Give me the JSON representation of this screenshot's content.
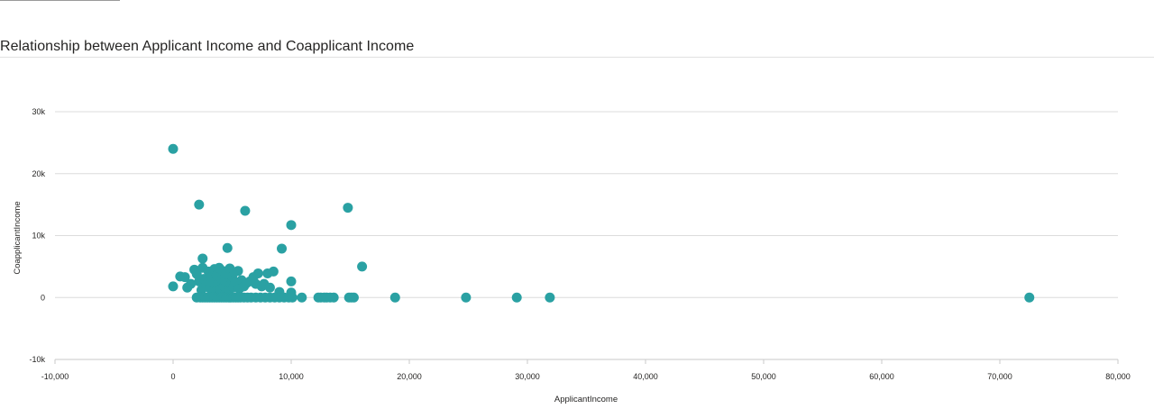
{
  "page": {
    "title": "Relationship between Applicant Income and Coapplicant Income"
  },
  "colors": {
    "marker": "#2aa1a3",
    "gridline": "#dcdcdc",
    "axis_line": "#c8c8c8",
    "text": "#252423"
  },
  "chart_data": {
    "type": "scatter",
    "title": "Relationship between Applicant Income and Coapplicant Income",
    "xlabel": "ApplicantIncome",
    "ylabel": "CoapplicantIncome",
    "xlim": [
      -10000,
      80000
    ],
    "ylim": [
      -10000,
      30000
    ],
    "x_ticks": [
      -10000,
      0,
      10000,
      20000,
      30000,
      40000,
      50000,
      60000,
      70000,
      80000
    ],
    "x_tick_labels": [
      "-10,000",
      "0",
      "10,000",
      "20,000",
      "30,000",
      "40,000",
      "50,000",
      "60,000",
      "70,000",
      "80,000"
    ],
    "y_ticks": [
      -10000,
      0,
      10000,
      20000,
      30000
    ],
    "y_tick_labels": [
      "-10k",
      "0",
      "10k",
      "20k",
      "30k"
    ],
    "grid": true,
    "legend": "none",
    "points": [
      [
        0,
        24000
      ],
      [
        2200,
        15000
      ],
      [
        6100,
        14000
      ],
      [
        14800,
        14500
      ],
      [
        10000,
        11700
      ],
      [
        4600,
        8000
      ],
      [
        9200,
        7900
      ],
      [
        16000,
        5000
      ],
      [
        2500,
        6300
      ],
      [
        0,
        1800
      ],
      [
        600,
        3400
      ],
      [
        1000,
        3300
      ],
      [
        1200,
        1600
      ],
      [
        1500,
        2200
      ],
      [
        1800,
        4500
      ],
      [
        2000,
        3800
      ],
      [
        2200,
        2600
      ],
      [
        2400,
        1200
      ],
      [
        2500,
        4800
      ],
      [
        2600,
        3000
      ],
      [
        2800,
        2000
      ],
      [
        3000,
        4200
      ],
      [
        3100,
        1500
      ],
      [
        3200,
        3300
      ],
      [
        3400,
        2400
      ],
      [
        3500,
        4600
      ],
      [
        3600,
        1000
      ],
      [
        3700,
        3600
      ],
      [
        3800,
        2200
      ],
      [
        3900,
        4800
      ],
      [
        4000,
        1300
      ],
      [
        4100,
        3000
      ],
      [
        4200,
        4300
      ],
      [
        4300,
        1800
      ],
      [
        4400,
        2700
      ],
      [
        4500,
        3800
      ],
      [
        4700,
        1100
      ],
      [
        4800,
        4700
      ],
      [
        4900,
        2200
      ],
      [
        5000,
        3400
      ],
      [
        5100,
        1600
      ],
      [
        5200,
        4100
      ],
      [
        5300,
        2500
      ],
      [
        5500,
        4300
      ],
      [
        5600,
        1400
      ],
      [
        5800,
        2800
      ],
      [
        6000,
        1800
      ],
      [
        6200,
        2300
      ],
      [
        6500,
        2600
      ],
      [
        6800,
        3300
      ],
      [
        7000,
        2200
      ],
      [
        7200,
        3900
      ],
      [
        7500,
        1800
      ],
      [
        7700,
        2200
      ],
      [
        8000,
        3900
      ],
      [
        8200,
        1600
      ],
      [
        8500,
        4200
      ],
      [
        9000,
        900
      ],
      [
        10000,
        2600
      ],
      [
        10000,
        800
      ],
      [
        2000,
        0
      ],
      [
        2300,
        0
      ],
      [
        2500,
        0
      ],
      [
        2700,
        0
      ],
      [
        2900,
        0
      ],
      [
        3100,
        0
      ],
      [
        3300,
        0
      ],
      [
        3500,
        0
      ],
      [
        3700,
        0
      ],
      [
        3900,
        0
      ],
      [
        4100,
        0
      ],
      [
        4300,
        0
      ],
      [
        4500,
        0
      ],
      [
        4700,
        0
      ],
      [
        4900,
        0
      ],
      [
        5100,
        0
      ],
      [
        5300,
        0
      ],
      [
        5500,
        0
      ],
      [
        5700,
        0
      ],
      [
        6000,
        0
      ],
      [
        6300,
        0
      ],
      [
        6600,
        0
      ],
      [
        7000,
        0
      ],
      [
        7400,
        0
      ],
      [
        7800,
        0
      ],
      [
        8200,
        0
      ],
      [
        8600,
        0
      ],
      [
        9000,
        0
      ],
      [
        9400,
        0
      ],
      [
        9800,
        0
      ],
      [
        10100,
        0
      ],
      [
        10900,
        0
      ],
      [
        12300,
        0
      ],
      [
        12500,
        0
      ],
      [
        12800,
        0
      ],
      [
        13000,
        0
      ],
      [
        13300,
        0
      ],
      [
        13600,
        0
      ],
      [
        14900,
        0
      ],
      [
        15100,
        0
      ],
      [
        15300,
        0
      ],
      [
        18800,
        0
      ],
      [
        24800,
        0
      ],
      [
        29100,
        0
      ],
      [
        31900,
        0
      ],
      [
        72500,
        0
      ]
    ]
  }
}
